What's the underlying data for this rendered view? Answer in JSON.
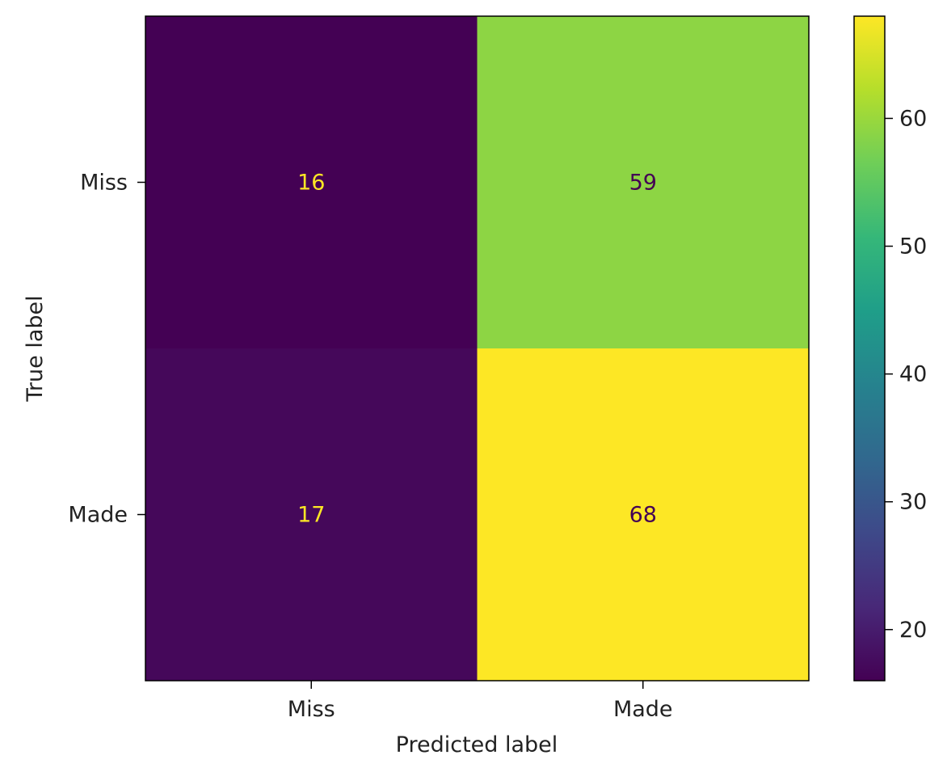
{
  "chart_data": {
    "type": "heatmap",
    "xlabel": "Predicted label",
    "ylabel": "True label",
    "x_categories": [
      "Miss",
      "Made"
    ],
    "y_categories": [
      "Miss",
      "Made"
    ],
    "values": [
      [
        16,
        59
      ],
      [
        17,
        68
      ]
    ],
    "colormap": "viridis",
    "colorbar": {
      "range": [
        16,
        68
      ],
      "ticks": [
        20,
        30,
        40,
        50,
        60
      ]
    },
    "annotation_colors": {
      "on_dark": "#fde725",
      "on_light": "#440154"
    }
  }
}
